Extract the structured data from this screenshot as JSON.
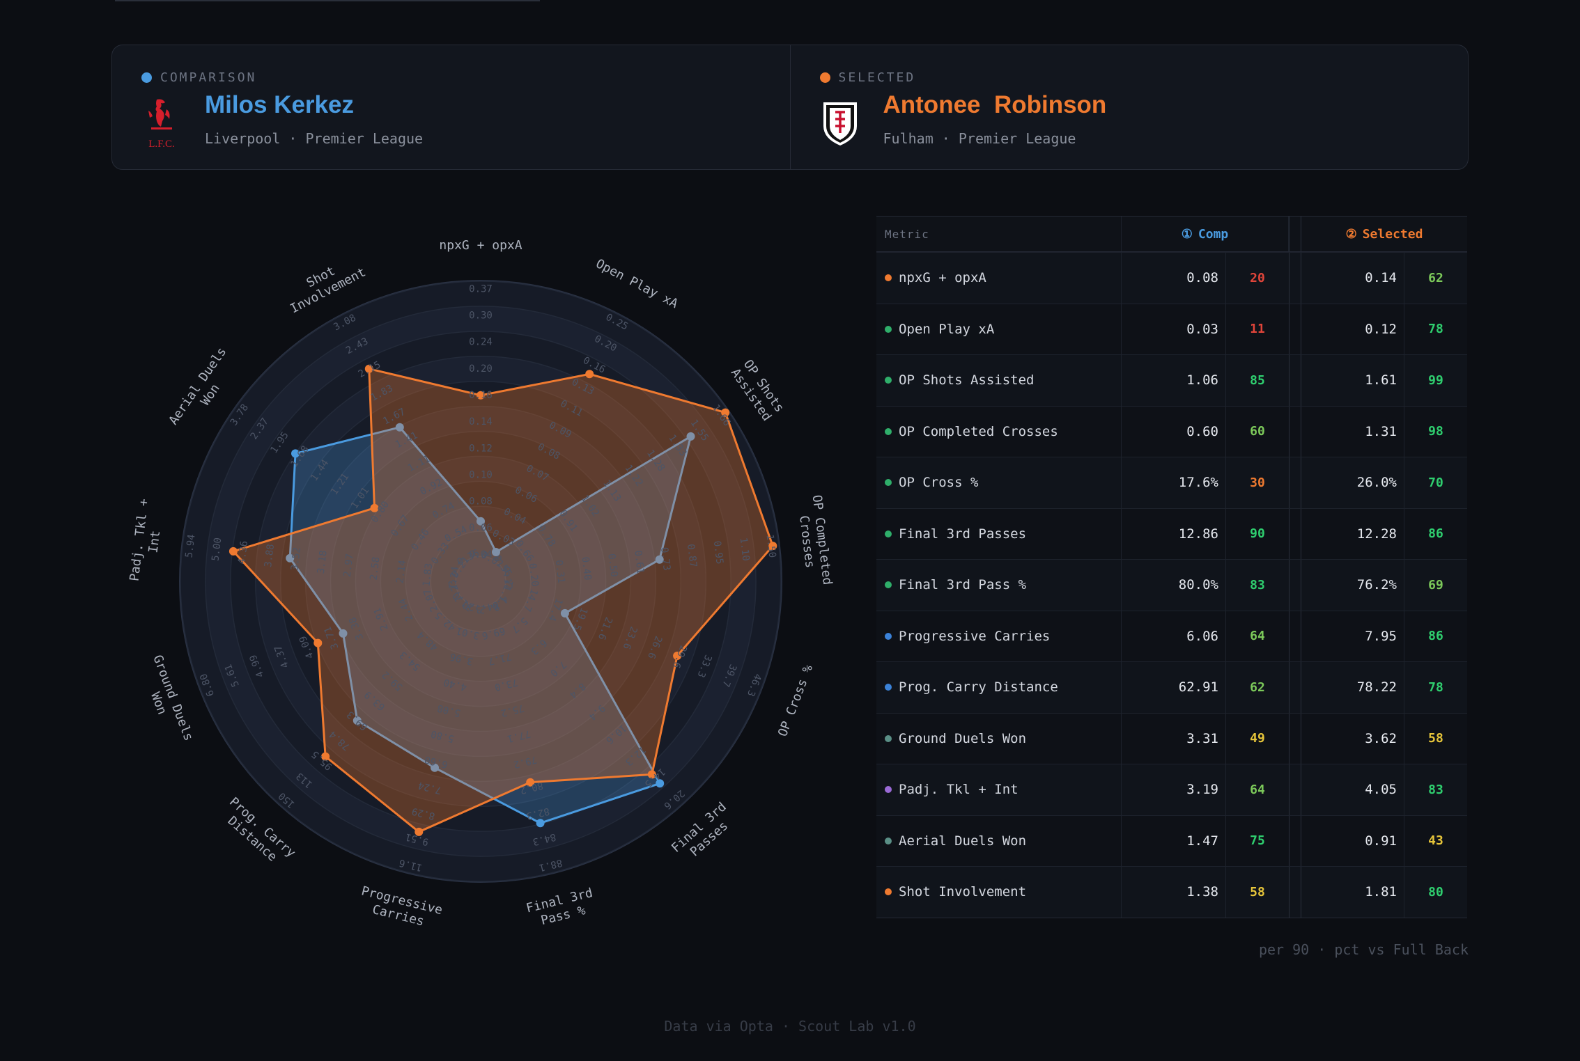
{
  "header": {
    "comparison": {
      "tag": "COMPARISON",
      "name": "Milos Kerkez",
      "subtitle": "Liverpool · Premier League",
      "crest_text": "L.F.C.",
      "color": "#4a9be0"
    },
    "selected": {
      "tag": "SELECTED",
      "name": "Antonee  Robinson",
      "subtitle": "Fulham · Premier League",
      "color": "#ef7a30"
    }
  },
  "table": {
    "header": {
      "metric": "Metric",
      "comp_icon": "①",
      "comp": "Comp",
      "sel_icon": "②",
      "selected": "Selected"
    },
    "rows": [
      {
        "metric": "npxG + opxA",
        "dot": "#ef7a30",
        "v1": "0.08",
        "p1": "20",
        "c1": "red",
        "v2": "0.14",
        "p2": "62",
        "c2": "lgreen"
      },
      {
        "metric": "Open Play xA",
        "dot": "#2fae6a",
        "v1": "0.03",
        "p1": "11",
        "c1": "red",
        "v2": "0.12",
        "p2": "78",
        "c2": "green"
      },
      {
        "metric": "OP Shots Assisted",
        "dot": "#2fae6a",
        "v1": "1.06",
        "p1": "85",
        "c1": "green",
        "v2": "1.61",
        "p2": "99",
        "c2": "green"
      },
      {
        "metric": "OP Completed Crosses",
        "dot": "#2fae6a",
        "v1": "0.60",
        "p1": "60",
        "c1": "lgreen",
        "v2": "1.31",
        "p2": "98",
        "c2": "green"
      },
      {
        "metric": "OP Cross %",
        "dot": "#2fae6a",
        "v1": "17.6%",
        "p1": "30",
        "c1": "orange",
        "v2": "26.0%",
        "p2": "70",
        "c2": "green"
      },
      {
        "metric": "Final 3rd Passes",
        "dot": "#2fae6a",
        "v1": "12.86",
        "p1": "90",
        "c1": "green",
        "v2": "12.28",
        "p2": "86",
        "c2": "green"
      },
      {
        "metric": "Final 3rd Pass %",
        "dot": "#2fae6a",
        "v1": "80.0%",
        "p1": "83",
        "c1": "green",
        "v2": "76.2%",
        "p2": "69",
        "c2": "lgreen"
      },
      {
        "metric": "Progressive Carries",
        "dot": "#3b82d8",
        "v1": "6.06",
        "p1": "64",
        "c1": "lgreen",
        "v2": "7.95",
        "p2": "86",
        "c2": "green"
      },
      {
        "metric": "Prog. Carry Distance",
        "dot": "#3b82d8",
        "v1": "62.91",
        "p1": "62",
        "c1": "lgreen",
        "v2": "78.22",
        "p2": "78",
        "c2": "green"
      },
      {
        "metric": "Ground Duels Won",
        "dot": "#5a8f86",
        "v1": "3.31",
        "p1": "49",
        "c1": "yellow",
        "v2": "3.62",
        "p2": "58",
        "c2": "yellow"
      },
      {
        "metric": "Padj. Tkl + Int",
        "dot": "#9a6ad6",
        "v1": "3.19",
        "p1": "64",
        "c1": "lgreen",
        "v2": "4.05",
        "p2": "83",
        "c2": "green"
      },
      {
        "metric": "Aerial Duels Won",
        "dot": "#5a8f86",
        "v1": "1.47",
        "p1": "75",
        "c1": "green",
        "v2": "0.91",
        "p2": "43",
        "c2": "yellow"
      },
      {
        "metric": "Shot Involvement",
        "dot": "#ef7a30",
        "v1": "1.38",
        "p1": "58",
        "c1": "yellow",
        "v2": "1.81",
        "p2": "80",
        "c2": "green"
      }
    ]
  },
  "footnote": "per 90 · pct vs Full Back",
  "credit": "Data via Opta · Scout Lab v1.0",
  "chart_data": {
    "type": "radar",
    "axes": [
      {
        "label": [
          "npxG + opxA"
        ],
        "ticks": [
          "0.04",
          "0.06",
          "0.08",
          "0.10",
          "0.12",
          "0.14",
          "0.16",
          "0.20",
          "0.24",
          "0.30",
          "0.37"
        ]
      },
      {
        "label": [
          "Open Play xA"
        ],
        "ticks": [
          "0.02",
          "0.03",
          "0.04",
          "0.06",
          "0.07",
          "0.08",
          "0.09",
          "0.11",
          "0.13",
          "0.16",
          "0.20",
          "0.25"
        ]
      },
      {
        "label": [
          "OP Shots",
          "Assisted"
        ],
        "ticks": [
          "0.56",
          "0.66",
          "0.78",
          "0.91",
          "1.02",
          "1.13",
          "1.22",
          "1.28",
          "1.33",
          "1.55",
          "1.66"
        ]
      },
      {
        "label": [
          "OP Completed",
          "Crosses"
        ],
        "ticks": [
          "0.12",
          "0.20",
          "0.31",
          "0.40",
          "0.50",
          "0.61",
          "0.73",
          "0.87",
          "0.95",
          "1.10",
          "1.50"
        ]
      },
      {
        "label": [
          "OP Cross %"
        ],
        "ticks": [
          "11.1",
          "14.7",
          "17.4",
          "19.5",
          "21.6",
          "23.6",
          "26.6",
          "29.6",
          "33.3",
          "39.7",
          "46.3"
        ]
      },
      {
        "label": [
          "Final 3rd",
          "Passes"
        ],
        "ticks": [
          "4.8",
          "5.7",
          "6.3",
          "7.0",
          "8.4",
          "9.4",
          "10.6",
          "12.3",
          "14.5",
          "20.6"
        ]
      },
      {
        "label": [
          "Final 3rd",
          "Pass %"
        ],
        "ticks": [
          "64.3",
          "69.6",
          "71.7",
          "73.0",
          "75.2",
          "77.1",
          "79.2",
          "80.2",
          "82.3",
          "84.3",
          "88.1"
        ]
      },
      {
        "label": [
          "Progressive",
          "Carries"
        ],
        "ticks": [
          "2.20",
          "3.01",
          "3.96",
          "4.40",
          "5.08",
          "5.80",
          "6.60",
          "7.24",
          "8.29",
          "9.51",
          "11.6"
        ]
      },
      {
        "label": [
          "Prog. Carry",
          "Distance"
        ],
        "ticks": [
          "31.0",
          "42.5",
          "48.4",
          "54.3",
          "59.2",
          "63.9",
          "69.3",
          "78.4",
          "95.5",
          "113",
          "150"
        ]
      },
      {
        "label": [
          "Ground Duels",
          "Won"
        ],
        "ticks": [
          "1.23",
          "2.07",
          "2.44",
          "2.91",
          "3.38",
          "3.71",
          "4.09",
          "4.37",
          "4.99",
          "5.61",
          "6.80"
        ]
      },
      {
        "label": [
          "Padj. Tkl +",
          "Int"
        ],
        "ticks": [
          "1.24",
          "1.83",
          "2.14",
          "2.58",
          "2.97",
          "3.18",
          "3.52",
          "3.88",
          "4.36",
          "5.00",
          "5.94"
        ]
      },
      {
        "label": [
          "Aerial Duels",
          "Won"
        ],
        "ticks": [
          "0.21",
          "0.33",
          "0.46",
          "0.67",
          "0.80",
          "1.01",
          "1.21",
          "1.44",
          "1.68",
          "1.95",
          "2.37",
          "3.78"
        ]
      },
      {
        "label": [
          "Shot",
          "Involvement"
        ],
        "ticks": [
          "0.36",
          "0.54",
          "0.74",
          "0.92",
          "1.11",
          "1.41",
          "1.67",
          "1.83",
          "2.15",
          "2.43",
          "3.08"
        ]
      }
    ],
    "series": [
      {
        "name": "Milos Kerkez",
        "color": "#4a9be0",
        "percentiles": [
          20,
          11,
          85,
          60,
          30,
          90,
          83,
          64,
          62,
          49,
          64,
          75,
          58
        ]
      },
      {
        "name": "Antonee  Robinson",
        "color": "#ef7a30",
        "percentiles": [
          62,
          78,
          99,
          98,
          70,
          86,
          69,
          86,
          78,
          58,
          83,
          43,
          80
        ]
      }
    ],
    "rlim": [
      0,
      100
    ]
  }
}
